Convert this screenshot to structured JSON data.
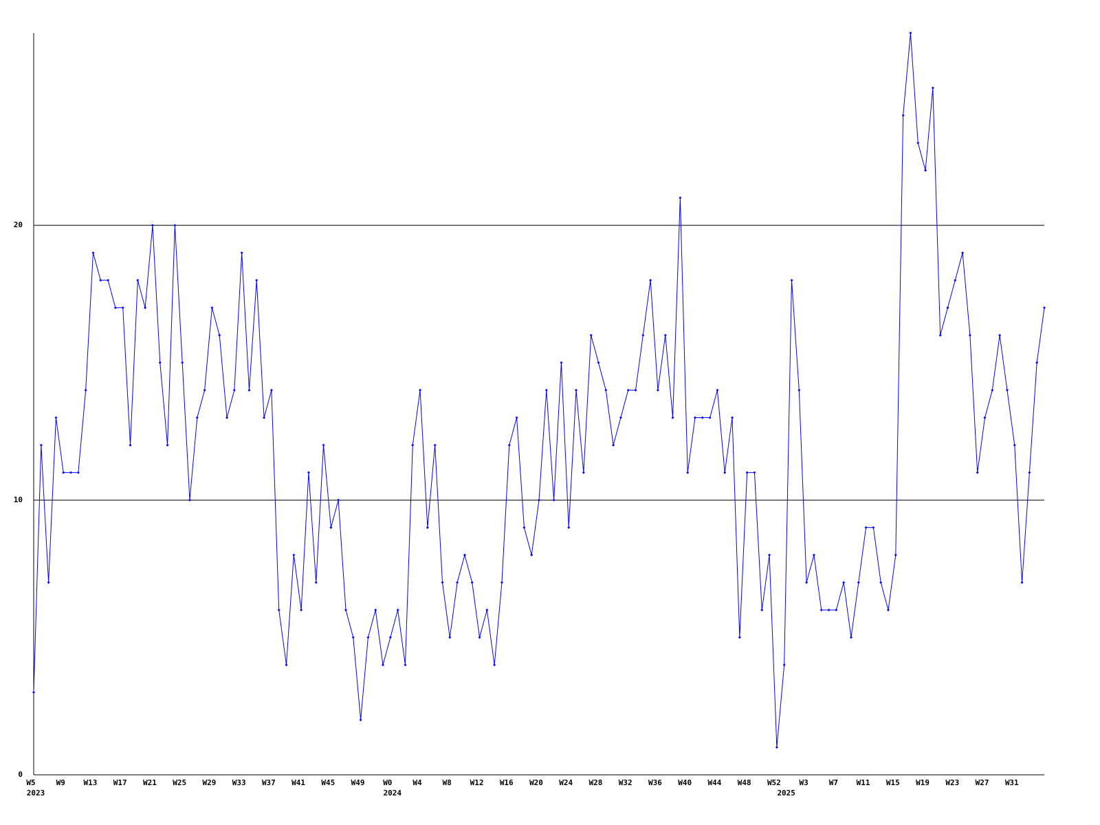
{
  "chart_data": {
    "type": "line",
    "categories": [
      "W5",
      null,
      null,
      null,
      "W9",
      null,
      null,
      null,
      "W13",
      null,
      null,
      null,
      "W17",
      null,
      null,
      null,
      "W21",
      null,
      null,
      null,
      "W25",
      null,
      null,
      null,
      "W29",
      null,
      null,
      null,
      "W33",
      null,
      null,
      null,
      "W37",
      null,
      null,
      null,
      "W41",
      null,
      null,
      null,
      "W45",
      null,
      null,
      null,
      "W49",
      null,
      null,
      null,
      "W0",
      null,
      null,
      null,
      "W4",
      null,
      null,
      null,
      "W8",
      null,
      null,
      null,
      "W12",
      null,
      null,
      null,
      "W16",
      null,
      null,
      null,
      "W20",
      null,
      null,
      null,
      "W24",
      null,
      null,
      null,
      "W28",
      null,
      null,
      null,
      "W32",
      null,
      null,
      null,
      "W36",
      null,
      null,
      null,
      "W40",
      null,
      null,
      null,
      "W44",
      null,
      null,
      null,
      "W48",
      null,
      null,
      null,
      "W52",
      null,
      null,
      null,
      "W3",
      null,
      null,
      null,
      "W7",
      null,
      null,
      null,
      "W11",
      null,
      null,
      null,
      "W15",
      null,
      null,
      null,
      "W19",
      null,
      null,
      null,
      "W23",
      null,
      null,
      null,
      "W27",
      null,
      null,
      null,
      "W31",
      null,
      null,
      null,
      null
    ],
    "years": [
      "2023",
      null,
      null,
      null,
      null,
      null,
      null,
      null,
      null,
      null,
      null,
      null,
      null,
      null,
      null,
      null,
      null,
      null,
      null,
      null,
      null,
      null,
      null,
      null,
      null,
      null,
      null,
      null,
      null,
      null,
      null,
      null,
      null,
      null,
      null,
      null,
      null,
      null,
      null,
      null,
      null,
      null,
      null,
      null,
      null,
      null,
      null,
      null,
      "2024",
      null,
      null,
      null,
      null,
      null,
      null,
      null,
      null,
      null,
      null,
      null,
      null,
      null,
      null,
      null,
      null,
      null,
      null,
      null,
      null,
      null,
      null,
      null,
      null,
      null,
      null,
      null,
      null,
      null,
      null,
      null,
      null,
      null,
      null,
      null,
      null,
      null,
      null,
      null,
      null,
      null,
      null,
      null,
      null,
      null,
      null,
      null,
      null,
      null,
      null,
      null,
      null,
      "2025",
      null,
      null,
      null,
      null,
      null,
      null,
      null,
      null,
      null,
      null,
      null,
      null,
      null,
      null,
      null,
      null,
      null,
      null,
      null,
      null,
      null,
      null,
      null,
      null,
      null,
      null,
      null,
      null,
      null,
      null,
      null,
      null,
      null,
      null,
      null
    ],
    "series": [
      {
        "color": "#0000ff",
        "values": [
          3,
          12,
          7,
          13,
          11,
          11,
          11,
          14,
          19,
          18,
          18,
          17,
          17,
          12,
          18,
          17,
          20,
          15,
          12,
          20,
          15,
          10,
          13,
          14,
          17,
          16,
          13,
          14,
          19,
          14,
          18,
          13,
          14,
          6,
          4,
          8,
          6,
          11,
          7,
          12,
          9,
          10,
          6,
          5,
          2,
          5,
          6,
          4,
          5,
          6,
          4,
          12,
          14,
          9,
          12,
          7,
          5,
          7,
          8,
          7,
          5,
          6,
          4,
          7,
          12,
          13,
          9,
          8,
          10,
          14,
          10,
          15,
          9,
          14,
          11,
          16,
          15,
          14,
          12,
          13,
          14,
          14,
          16,
          18,
          14,
          16,
          13,
          21,
          11,
          13,
          13,
          13,
          14,
          11,
          13,
          5,
          11,
          11,
          6,
          8,
          1,
          4,
          18,
          14,
          7,
          8,
          6,
          6,
          6,
          7,
          5,
          7,
          9,
          9,
          7,
          6,
          8,
          24,
          27,
          23,
          22,
          25,
          16,
          17,
          18,
          19,
          16,
          11,
          13,
          14,
          16,
          14,
          12,
          7,
          11,
          15,
          17
        ]
      }
    ],
    "ylim": [
      0,
      27
    ],
    "yticks": [
      0,
      10,
      20
    ],
    "grid": true
  }
}
